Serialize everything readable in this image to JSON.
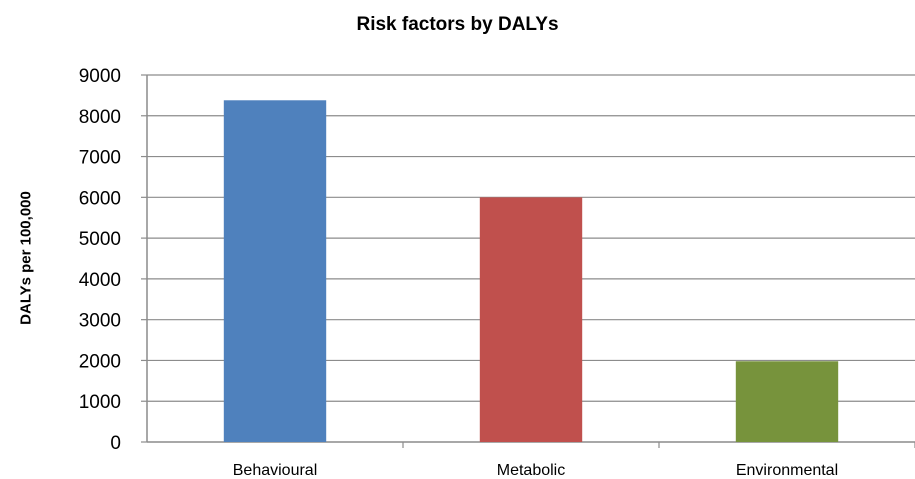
{
  "chart_data": {
    "type": "bar",
    "title": "Risk factors by DALYs",
    "xlabel": "",
    "ylabel": "DALYs per 100,000",
    "categories": [
      "Behavioural",
      "Metabolic",
      "Environmental"
    ],
    "values": [
      8380,
      6000,
      1980
    ],
    "colors": [
      "#4f81bd",
      "#c0504d",
      "#77933c"
    ],
    "ylim": [
      0,
      9000
    ],
    "yticks": [
      0,
      1000,
      2000,
      3000,
      4000,
      5000,
      6000,
      7000,
      8000,
      9000
    ],
    "grid": true,
    "legend": "none"
  }
}
